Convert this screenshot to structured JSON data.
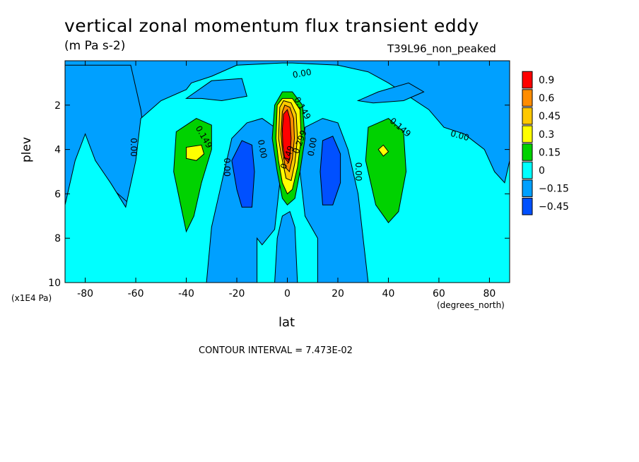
{
  "chart_data": {
    "type": "heatmap",
    "title": "vertical zonal momentum flux transient eddy",
    "units": "(m Pa s-2)",
    "dataset": "T39L96_non_peaked",
    "xlabel": "lat",
    "ylabel": "plev",
    "x_units": "(degrees_north)",
    "y_units": "(x1E4 Pa)",
    "xlim": [
      -88,
      88
    ],
    "ylim": [
      0,
      10
    ],
    "y_inverted": true,
    "x_ticks": [
      -80,
      -60,
      -40,
      -20,
      0,
      20,
      40,
      60,
      80
    ],
    "y_ticks": [
      2,
      4,
      6,
      8,
      10
    ],
    "contour_interval_text": "CONTOUR INTERVAL = 7.473E-02",
    "legend": {
      "placement": "right",
      "levels": [
        "0.9",
        "0.6",
        "0.45",
        "0.3",
        "0.15",
        "0",
        "−0.15",
        "−0.45"
      ],
      "colors": [
        "#ff0000",
        "#ff8c00",
        "#ffc800",
        "#ffff00",
        "#00d200",
        "#00ffff",
        "#00a0ff",
        "#0050ff"
      ]
    },
    "background_level_color": "#00a0ff",
    "regions": [
      {
        "name": "neg-upper-left",
        "color": "#00a0ff",
        "points": [
          [
            -88,
            0.2
          ],
          [
            -62,
            0.2
          ],
          [
            -58,
            2.2
          ],
          [
            -56,
            4.0
          ],
          [
            -62,
            6.5
          ],
          [
            -72,
            5.5
          ],
          [
            -80,
            4.8
          ],
          [
            -84,
            5.0
          ],
          [
            -88,
            6.8
          ]
        ]
      },
      {
        "name": "zero-band",
        "color": "#00ffff",
        "points": [
          [
            -88,
            6.5
          ],
          [
            -84,
            4.5
          ],
          [
            -80,
            3.3
          ],
          [
            -76,
            4.5
          ],
          [
            -70,
            5.5
          ],
          [
            -64,
            6.6
          ],
          [
            -60,
            4.5
          ],
          [
            -58,
            2.6
          ],
          [
            -50,
            1.8
          ],
          [
            -40,
            1.3
          ],
          [
            -38,
            1.0
          ],
          [
            -30,
            0.7
          ],
          [
            -20,
            0.2
          ],
          [
            -2,
            0.1
          ],
          [
            2,
            0.1
          ],
          [
            20,
            0.2
          ],
          [
            32,
            0.5
          ],
          [
            40,
            1.0
          ],
          [
            48,
            1.6
          ],
          [
            56,
            2.2
          ],
          [
            62,
            3.0
          ],
          [
            70,
            3.3
          ],
          [
            78,
            4.0
          ],
          [
            82,
            5.0
          ],
          [
            86,
            5.5
          ],
          [
            88,
            4.5
          ],
          [
            88,
            10
          ],
          [
            -88,
            10
          ]
        ]
      },
      {
        "name": "neg-upper-left-pocket",
        "color": "#00a0ff",
        "points": [
          [
            -40,
            1.7
          ],
          [
            -30,
            0.9
          ],
          [
            -18,
            0.8
          ],
          [
            -16,
            1.6
          ],
          [
            -26,
            1.8
          ],
          [
            -34,
            1.7
          ]
        ]
      },
      {
        "name": "neg-upper-right-pocket",
        "color": "#00a0ff",
        "points": [
          [
            28,
            1.8
          ],
          [
            36,
            1.4
          ],
          [
            48,
            1.0
          ],
          [
            54,
            1.4
          ],
          [
            46,
            1.8
          ],
          [
            34,
            1.9
          ]
        ]
      },
      {
        "name": "neg-center-left-lobe",
        "color": "#00a0ff",
        "points": [
          [
            -32,
            10
          ],
          [
            -30,
            7.5
          ],
          [
            -26,
            5.5
          ],
          [
            -22,
            3.5
          ],
          [
            -16,
            2.8
          ],
          [
            -10,
            2.6
          ],
          [
            -5,
            3.0
          ],
          [
            -3,
            5.5
          ],
          [
            -5,
            7.6
          ],
          [
            -10,
            8.3
          ],
          [
            -12,
            8.0
          ],
          [
            -12,
            10
          ]
        ]
      },
      {
        "name": "neg-center-right-lobe",
        "color": "#00a0ff",
        "points": [
          [
            12,
            10
          ],
          [
            12,
            8.0
          ],
          [
            7,
            7.0
          ],
          [
            5,
            5.0
          ],
          [
            7,
            3.0
          ],
          [
            14,
            2.6
          ],
          [
            20,
            2.8
          ],
          [
            24,
            4.0
          ],
          [
            28,
            6.0
          ],
          [
            30,
            8.0
          ],
          [
            32,
            10
          ]
        ]
      },
      {
        "name": "neg-center-stem",
        "color": "#00a0ff",
        "points": [
          [
            -5,
            10
          ],
          [
            -4,
            8.0
          ],
          [
            -2,
            7.0
          ],
          [
            1,
            6.8
          ],
          [
            3,
            7.5
          ],
          [
            4,
            10
          ]
        ]
      },
      {
        "name": "pos-left-lobe",
        "color": "#00d200",
        "points": [
          [
            -40,
            7.7
          ],
          [
            -45,
            5.0
          ],
          [
            -44,
            3.2
          ],
          [
            -36,
            2.6
          ],
          [
            -30,
            2.9
          ],
          [
            -30,
            4.0
          ],
          [
            -34,
            5.5
          ],
          [
            -37,
            7.0
          ]
        ]
      },
      {
        "name": "pos-left-core",
        "color": "#ffff00",
        "points": [
          [
            -40,
            4.4
          ],
          [
            -40,
            3.9
          ],
          [
            -34,
            3.8
          ],
          [
            -33,
            4.2
          ],
          [
            -36,
            4.5
          ]
        ]
      },
      {
        "name": "pos-right-lobe",
        "color": "#00d200",
        "points": [
          [
            32,
            3.0
          ],
          [
            40,
            2.6
          ],
          [
            46,
            3.2
          ],
          [
            47,
            5.0
          ],
          [
            44,
            6.8
          ],
          [
            40,
            7.3
          ],
          [
            35,
            6.5
          ],
          [
            31,
            4.5
          ]
        ]
      },
      {
        "name": "pos-right-core",
        "color": "#ffff00",
        "points": [
          [
            36,
            4.0
          ],
          [
            38,
            3.8
          ],
          [
            40,
            4.1
          ],
          [
            38,
            4.3
          ]
        ]
      },
      {
        "name": "neg-left-core",
        "color": "#0050ff",
        "points": [
          [
            -20,
            5.8
          ],
          [
            -22,
            4.5
          ],
          [
            -18,
            3.6
          ],
          [
            -14,
            3.8
          ],
          [
            -13,
            5.0
          ],
          [
            -14,
            6.6
          ],
          [
            -18,
            6.6
          ]
        ]
      },
      {
        "name": "neg-right-core",
        "color": "#0050ff",
        "points": [
          [
            13,
            5.0
          ],
          [
            14,
            3.6
          ],
          [
            18,
            3.4
          ],
          [
            21,
            4.2
          ],
          [
            21,
            5.5
          ],
          [
            18,
            6.5
          ],
          [
            14,
            6.5
          ]
        ]
      },
      {
        "name": "pos-center-green",
        "color": "#00d200",
        "points": [
          [
            -6,
            3.5
          ],
          [
            -5,
            2.0
          ],
          [
            -2,
            1.4
          ],
          [
            2,
            1.4
          ],
          [
            6,
            2.0
          ],
          [
            7,
            3.5
          ],
          [
            5,
            5.0
          ],
          [
            3,
            6.2
          ],
          [
            0,
            6.5
          ],
          [
            -2,
            6.2
          ],
          [
            -4,
            5.0
          ]
        ]
      },
      {
        "name": "pos-center-yellow",
        "color": "#ffff00",
        "points": [
          [
            -4.5,
            3.5
          ],
          [
            -4,
            2.0
          ],
          [
            -2,
            1.7
          ],
          [
            2,
            1.7
          ],
          [
            5,
            2.2
          ],
          [
            5.5,
            3.5
          ],
          [
            4,
            4.8
          ],
          [
            2,
            5.8
          ],
          [
            0,
            6.0
          ],
          [
            -2,
            5.5
          ],
          [
            -3.5,
            4.5
          ]
        ]
      },
      {
        "name": "pos-center-gold",
        "color": "#ffc800",
        "points": [
          [
            -3.5,
            3.5
          ],
          [
            -3,
            2.1
          ],
          [
            -1.5,
            1.8
          ],
          [
            1.5,
            1.9
          ],
          [
            3.5,
            2.4
          ],
          [
            4,
            3.5
          ],
          [
            3,
            4.6
          ],
          [
            1.5,
            5.4
          ],
          [
            -0.5,
            5.3
          ],
          [
            -2.5,
            4.2
          ]
        ]
      },
      {
        "name": "pos-center-orange",
        "color": "#ff8c00",
        "points": [
          [
            -2.5,
            3.3
          ],
          [
            -2,
            2.3
          ],
          [
            -1,
            2.0
          ],
          [
            1,
            2.1
          ],
          [
            2.5,
            2.6
          ],
          [
            2.8,
            3.5
          ],
          [
            2,
            4.4
          ],
          [
            0.8,
            5.0
          ],
          [
            -0.8,
            4.8
          ],
          [
            -2,
            4.0
          ]
        ]
      },
      {
        "name": "pos-center-red",
        "color": "#ff0000",
        "points": [
          [
            -2,
            3.1
          ],
          [
            -1.5,
            2.4
          ],
          [
            0,
            2.2
          ],
          [
            1,
            2.6
          ],
          [
            1.5,
            3.5
          ],
          [
            1,
            4.4
          ],
          [
            0.5,
            4.6
          ],
          [
            -1,
            4.4
          ],
          [
            -1.8,
            3.8
          ]
        ]
      }
    ],
    "contour_labels": [
      {
        "text": "0.00",
        "x": 6,
        "y": 0.7,
        "angle": -10
      },
      {
        "text": "0.00",
        "x": 68,
        "y": 3.5,
        "angle": 15
      },
      {
        "text": "0.00",
        "x": -62,
        "y": 3.9,
        "angle": 90
      },
      {
        "text": "0.00",
        "x": -25,
        "y": 4.8,
        "angle": 90
      },
      {
        "text": "0.00",
        "x": -11,
        "y": 4.0,
        "angle": 80
      },
      {
        "text": "0.00",
        "x": 11,
        "y": 3.9,
        "angle": -80
      },
      {
        "text": "0.00",
        "x": 27,
        "y": 5.0,
        "angle": 90
      },
      {
        "text": "0.149",
        "x": -34,
        "y": 3.5,
        "angle": 60
      },
      {
        "text": "0.149",
        "x": 44,
        "y": 3.1,
        "angle": 40
      },
      {
        "text": "0.149",
        "x": 5,
        "y": 2.2,
        "angle": 60
      },
      {
        "text": "0.299",
        "x": 6,
        "y": 3.7,
        "angle": -70
      },
      {
        "text": "0.149",
        "x": 1,
        "y": 4.4,
        "angle": -70
      }
    ]
  }
}
